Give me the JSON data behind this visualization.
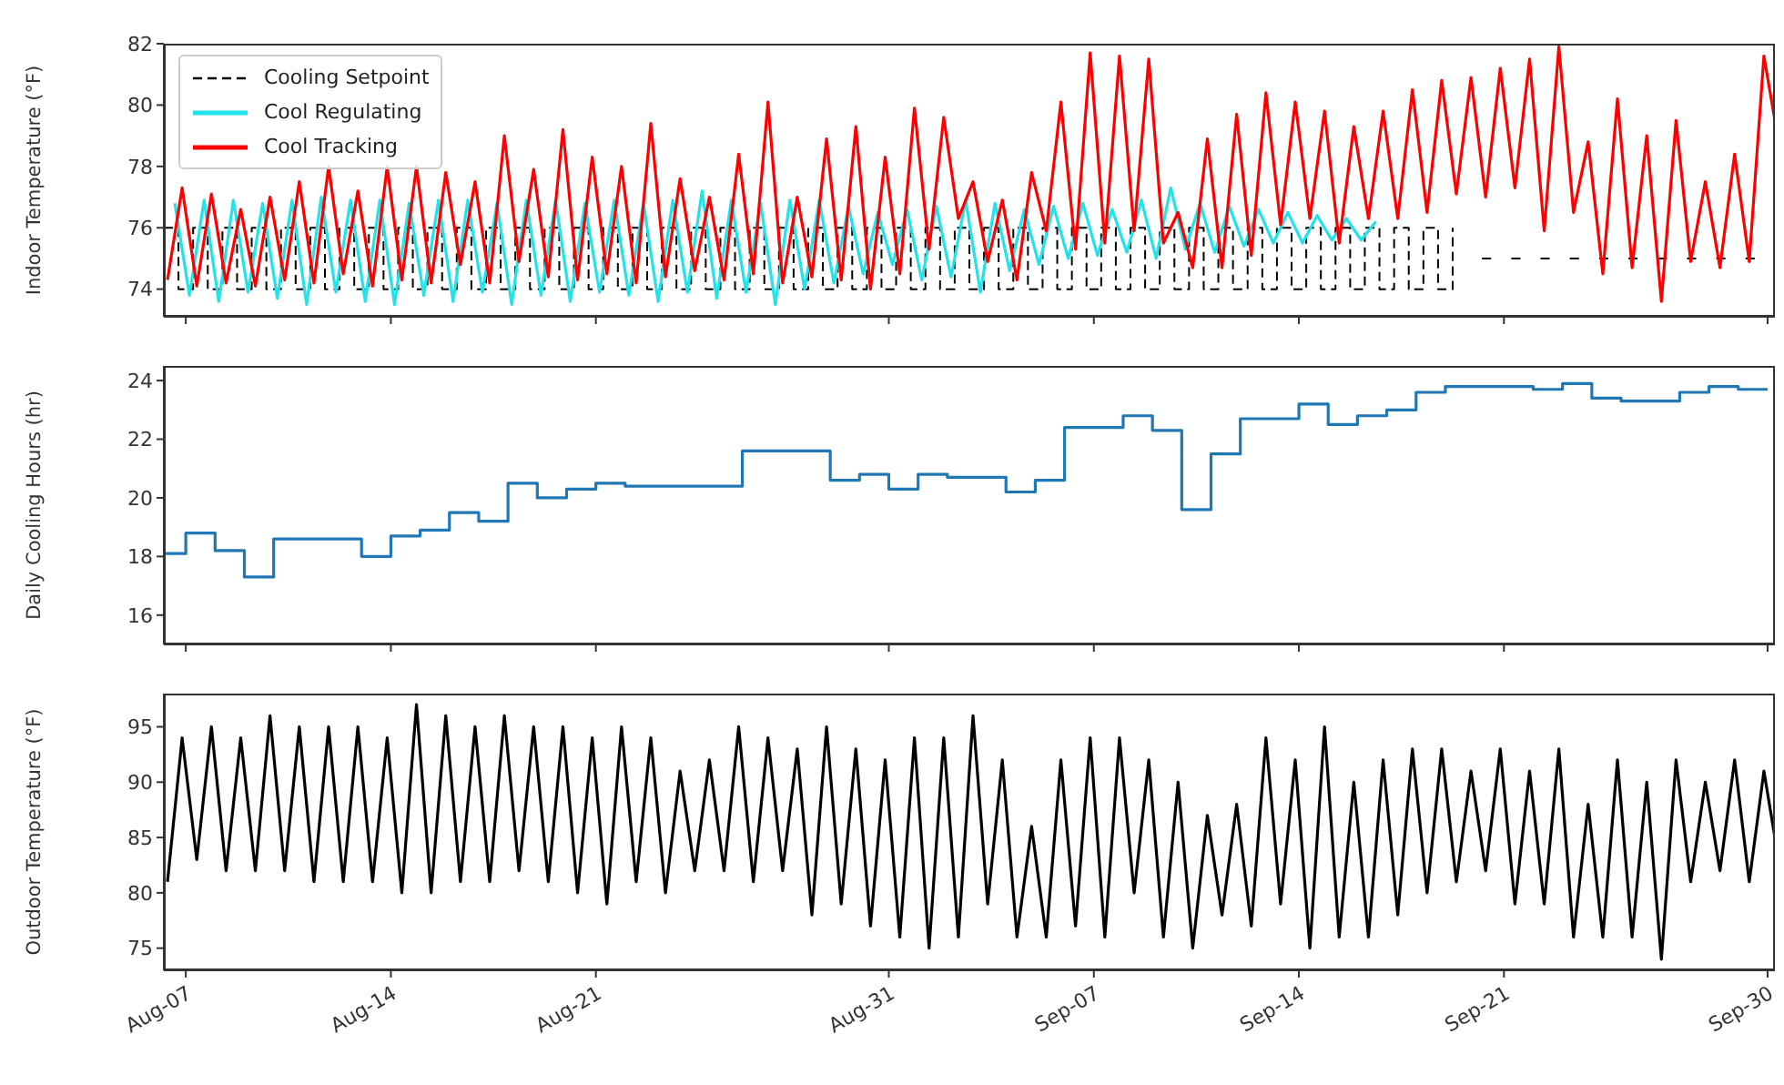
{
  "chart_data": [
    {
      "type": "line",
      "ylabel": "Indoor Temperature (°F)",
      "legend": "top left",
      "tick_labels": "y",
      "xlim": [
        "--08-06T06:00",
        "--09-30T06:00"
      ],
      "xticks": [
        {
          "value": "--08-07",
          "label": "Aug-07"
        },
        {
          "value": "--08-14",
          "label": "Aug-14"
        },
        {
          "value": "--08-21",
          "label": "Aug-21"
        },
        {
          "value": "--08-31",
          "label": "Aug-31"
        },
        {
          "value": "--09-07",
          "label": "Sep-07"
        },
        {
          "value": "--09-14",
          "label": "Sep-14"
        },
        {
          "value": "--09-21",
          "label": "Sep-21"
        },
        {
          "value": "--09-30",
          "label": "Sep-30"
        }
      ],
      "ylim": [
        73.1,
        82
      ],
      "yticks": [
        74,
        76,
        78,
        80,
        82
      ],
      "series": [
        {
          "name": "Cooling Setpoint",
          "type": "step",
          "line_style": "dashed",
          "color": "#000000",
          "x": [
            "--08-06T06:00",
            "--08-06T18:00",
            "--08-07T06:00",
            "--08-07T18:00",
            "--08-08T06:00",
            "--08-08T18:00",
            "--08-09T06:00",
            "--08-09T18:00",
            "--08-10T06:00",
            "--08-10T18:00",
            "--08-11T06:00",
            "--08-11T18:00",
            "--08-12T06:00",
            "--08-12T18:00",
            "--08-13T06:00",
            "--08-13T18:00",
            "--08-14T06:00",
            "--08-14T18:00",
            "--08-15T06:00",
            "--08-15T18:00",
            "--08-16T06:00",
            "--08-16T18:00",
            "--08-17T06:00",
            "--08-17T18:00",
            "--08-18T06:00",
            "--08-18T18:00",
            "--08-19T06:00",
            "--08-19T18:00",
            "--08-20T06:00",
            "--08-20T18:00",
            "--08-21T06:00",
            "--08-21T18:00",
            "--08-22T06:00",
            "--08-22T18:00",
            "--08-23T06:00",
            "--08-23T18:00",
            "--08-24T06:00",
            "--08-24T18:00",
            "--08-25T06:00",
            "--08-25T18:00",
            "--08-26T06:00",
            "--08-26T18:00",
            "--08-27T06:00",
            "--08-27T18:00",
            "--08-28T06:00",
            "--08-28T18:00",
            "--08-29T06:00",
            "--08-29T18:00",
            "--08-30T06:00",
            "--08-30T18:00",
            "--08-31T06:00",
            "--08-31T18:00",
            "--09-01T06:00",
            "--09-01T18:00",
            "--09-02T06:00",
            "--09-02T18:00",
            "--09-03T06:00",
            "--09-03T18:00",
            "--09-04T06:00",
            "--09-04T18:00",
            "--09-05T06:00",
            "--09-05T18:00",
            "--09-06T06:00",
            "--09-06T18:00",
            "--09-07T06:00",
            "--09-07T18:00",
            "--09-08T06:00",
            "--09-08T18:00",
            "--09-09T06:00",
            "--09-09T18:00",
            "--09-10T06:00",
            "--09-10T18:00",
            "--09-11T06:00",
            "--09-11T18:00",
            "--09-12T06:00",
            "--09-12T18:00",
            "--09-13T06:00",
            "--09-13T18:00",
            "--09-14T06:00",
            "--09-14T18:00",
            "--09-15T06:00",
            "--09-15T18:00",
            "--09-16T06:00",
            "--09-16T18:00",
            "--09-17T06:00",
            "--09-17T18:00",
            "--09-18T06:00",
            "--09-18T18:00",
            "--09-19T06:00",
            "--09-19T18:00",
            "--09-20T06:00",
            "--09-20T17:00",
            "--09-20T18:00",
            "--09-21T06:00",
            "--09-21T17:00",
            "--09-21T18:00",
            "--09-22T06:00",
            "--09-22T17:00",
            "--09-22T18:00",
            "--09-23T06:00",
            "--09-23T17:00",
            "--09-23T18:00",
            "--09-24T06:00",
            "--09-24T17:00",
            "--09-24T18:00",
            "--09-25T06:00",
            "--09-25T17:00",
            "--09-25T18:00",
            "--09-26T06:00",
            "--09-26T17:00",
            "--09-26T18:00",
            "--09-27T06:00",
            "--09-27T17:00",
            "--09-27T18:00",
            "--09-28T06:00",
            "--09-28T17:00",
            "--09-28T18:00",
            "--09-29T06:00",
            "--09-29T17:00"
          ],
          "values": [
            76,
            74,
            76,
            74,
            76,
            74,
            76,
            74,
            76,
            74,
            76,
            74,
            76,
            74,
            76,
            74,
            76,
            74,
            76,
            74,
            76,
            74,
            76,
            74,
            76,
            74,
            76,
            74,
            76,
            74,
            76,
            74,
            76,
            74,
            76,
            74,
            76,
            74,
            76,
            74,
            76,
            74,
            76,
            74,
            76,
            74,
            76,
            74,
            76,
            74,
            76,
            74,
            76,
            74,
            76,
            74,
            76,
            74,
            76,
            74,
            76,
            74,
            76,
            74,
            76,
            74,
            76,
            74,
            76,
            74,
            76,
            74,
            76,
            74,
            76,
            74,
            76,
            74,
            76,
            74,
            76,
            74,
            76,
            74,
            76,
            74,
            76,
            74,
            76,
            null,
            75,
            75,
            null,
            75,
            75,
            null,
            75,
            75,
            null,
            75,
            75,
            null,
            75,
            75,
            null,
            75,
            75,
            null,
            75,
            75,
            null,
            75,
            75,
            null,
            75,
            75,
            null,
            75,
            75
          ]
        },
        {
          "name": "Cool Regulating",
          "color": "#22e3ea",
          "x": [
            "--08-06T15:00",
            "--08-07T03:00",
            "--08-07T15:00",
            "--08-08T03:00",
            "--08-08T15:00",
            "--08-09T03:00",
            "--08-09T15:00",
            "--08-10T03:00",
            "--08-10T15:00",
            "--08-11T03:00",
            "--08-11T15:00",
            "--08-12T03:00",
            "--08-12T15:00",
            "--08-13T03:00",
            "--08-13T15:00",
            "--08-14T03:00",
            "--08-14T15:00",
            "--08-15T03:00",
            "--08-15T15:00",
            "--08-16T03:00",
            "--08-16T15:00",
            "--08-17T03:00",
            "--08-17T15:00",
            "--08-18T03:00",
            "--08-18T15:00",
            "--08-19T03:00",
            "--08-19T15:00",
            "--08-20T03:00",
            "--08-20T15:00",
            "--08-21T03:00",
            "--08-21T15:00",
            "--08-22T03:00",
            "--08-22T15:00",
            "--08-23T03:00",
            "--08-23T15:00",
            "--08-24T03:00",
            "--08-24T15:00",
            "--08-25T03:00",
            "--08-25T15:00",
            "--08-26T03:00",
            "--08-26T15:00",
            "--08-27T03:00",
            "--08-27T15:00",
            "--08-28T03:00",
            "--08-28T15:00",
            "--08-29T03:00",
            "--08-29T15:00",
            "--08-30T03:00",
            "--08-30T15:00",
            "--08-31T03:00",
            "--08-31T15:00",
            "--09-01T03:00",
            "--09-01T15:00",
            "--09-02T03:00",
            "--09-02T15:00",
            "--09-03T03:00",
            "--09-03T15:00",
            "--09-04T03:00",
            "--09-04T15:00",
            "--09-05T03:00",
            "--09-05T15:00",
            "--09-06T03:00",
            "--09-06T15:00",
            "--09-07T03:00",
            "--09-07T15:00",
            "--09-08T03:00",
            "--09-08T15:00",
            "--09-09T03:00",
            "--09-09T15:00",
            "--09-10T03:00",
            "--09-10T15:00",
            "--09-11T03:00",
            "--09-11T15:00",
            "--09-12T03:00",
            "--09-12T15:00",
            "--09-13T03:00",
            "--09-13T15:00",
            "--09-14T03:00",
            "--09-14T15:00",
            "--09-15T03:00",
            "--09-15T15:00",
            "--09-16T03:00",
            "--09-16T15:00"
          ],
          "values": [
            76.8,
            73.8,
            76.9,
            73.6,
            76.9,
            73.9,
            76.8,
            73.7,
            76.9,
            73.5,
            77.0,
            73.9,
            76.9,
            73.6,
            76.9,
            73.5,
            76.8,
            73.8,
            76.9,
            73.6,
            76.9,
            73.9,
            76.8,
            73.5,
            76.9,
            73.8,
            76.9,
            73.6,
            76.8,
            73.9,
            76.9,
            73.8,
            76.8,
            73.6,
            76.9,
            73.9,
            77.2,
            73.7,
            76.9,
            73.9,
            76.8,
            73.5,
            76.9,
            74.0,
            76.9,
            74.2,
            76.7,
            74.5,
            76.5,
            74.8,
            76.6,
            74.3,
            76.7,
            74.4,
            76.9,
            73.9,
            76.8,
            74.6,
            76.6,
            74.8,
            76.7,
            75.0,
            76.8,
            75.1,
            76.6,
            75.2,
            76.9,
            75.0,
            77.3,
            75.3,
            76.8,
            75.2,
            76.7,
            75.4,
            76.6,
            75.5,
            76.5,
            75.5,
            76.4,
            75.6,
            76.3,
            75.6,
            76.2
          ]
        },
        {
          "name": "Cool Tracking",
          "color": "#ff0000",
          "x": [
            "--08-06T09:00",
            "--08-06T21:00",
            "--08-07T09:00",
            "--08-07T21:00",
            "--08-08T09:00",
            "--08-08T21:00",
            "--08-09T09:00",
            "--08-09T21:00",
            "--08-10T09:00",
            "--08-10T21:00",
            "--08-11T09:00",
            "--08-11T21:00",
            "--08-12T09:00",
            "--08-12T21:00",
            "--08-13T09:00",
            "--08-13T21:00",
            "--08-14T09:00",
            "--08-14T21:00",
            "--08-15T09:00",
            "--08-15T21:00",
            "--08-16T09:00",
            "--08-16T21:00",
            "--08-17T09:00",
            "--08-17T21:00",
            "--08-18T09:00",
            "--08-18T21:00",
            "--08-19T09:00",
            "--08-19T21:00",
            "--08-20T09:00",
            "--08-20T21:00",
            "--08-21T09:00",
            "--08-21T21:00",
            "--08-22T09:00",
            "--08-22T21:00",
            "--08-23T09:00",
            "--08-23T21:00",
            "--08-24T09:00",
            "--08-24T21:00",
            "--08-25T09:00",
            "--08-25T21:00",
            "--08-26T09:00",
            "--08-26T21:00",
            "--08-27T09:00",
            "--08-27T21:00",
            "--08-28T09:00",
            "--08-28T21:00",
            "--08-29T09:00",
            "--08-29T21:00",
            "--08-30T09:00",
            "--08-30T21:00",
            "--08-31T09:00",
            "--08-31T21:00",
            "--09-01T09:00",
            "--09-01T21:00",
            "--09-02T09:00",
            "--09-02T21:00",
            "--09-03T09:00",
            "--09-03T21:00",
            "--09-04T09:00",
            "--09-04T21:00",
            "--09-05T09:00",
            "--09-05T21:00",
            "--09-06T09:00",
            "--09-06T21:00",
            "--09-07T09:00",
            "--09-07T21:00",
            "--09-08T09:00",
            "--09-08T21:00",
            "--09-09T09:00",
            "--09-09T21:00",
            "--09-10T09:00",
            "--09-10T21:00",
            "--09-11T09:00",
            "--09-11T21:00",
            "--09-12T09:00",
            "--09-12T21:00",
            "--09-13T09:00",
            "--09-13T21:00",
            "--09-14T09:00",
            "--09-14T21:00",
            "--09-15T09:00",
            "--09-15T21:00",
            "--09-16T09:00",
            "--09-16T21:00",
            "--09-17T09:00",
            "--09-17T21:00",
            "--09-18T09:00",
            "--09-18T21:00",
            "--09-19T09:00",
            "--09-19T21:00",
            "--09-20T09:00",
            "--09-20T21:00",
            "--09-21T09:00",
            "--09-21T21:00",
            "--09-22T09:00",
            "--09-22T21:00",
            "--09-23T09:00",
            "--09-23T21:00",
            "--09-24T09:00",
            "--09-24T21:00",
            "--09-25T09:00",
            "--09-25T21:00",
            "--09-26T09:00",
            "--09-26T21:00",
            "--09-27T09:00",
            "--09-27T21:00",
            "--09-28T09:00",
            "--09-28T21:00",
            "--09-29T09:00",
            "--09-29T21:00",
            "--09-30T06:00"
          ],
          "values": [
            74.3,
            77.3,
            74.1,
            77.1,
            74.2,
            76.6,
            74.1,
            77.0,
            74.3,
            77.5,
            74.2,
            78.0,
            74.5,
            77.2,
            74.1,
            78.0,
            74.3,
            78.0,
            74.2,
            77.8,
            74.8,
            77.5,
            74.2,
            79.0,
            74.9,
            77.9,
            74.4,
            79.2,
            74.3,
            78.3,
            74.5,
            78.0,
            74.2,
            79.4,
            74.4,
            77.6,
            74.6,
            77.0,
            74.3,
            78.4,
            74.5,
            80.1,
            74.2,
            77.0,
            74.4,
            78.9,
            74.3,
            79.3,
            74.0,
            78.3,
            74.5,
            79.9,
            75.3,
            79.6,
            76.3,
            77.5,
            74.9,
            76.9,
            74.3,
            77.8,
            75.9,
            80.1,
            75.3,
            81.7,
            75.5,
            81.6,
            75.9,
            81.5,
            75.5,
            76.5,
            74.7,
            78.9,
            74.7,
            79.7,
            75.1,
            80.4,
            76.1,
            80.1,
            76.3,
            79.8,
            75.5,
            79.3,
            76.3,
            79.8,
            76.3,
            80.5,
            76.5,
            80.8,
            77.1,
            80.9,
            77.0,
            81.2,
            77.3,
            81.5,
            75.9,
            81.9,
            76.5,
            78.8,
            74.5,
            80.2,
            74.7,
            79.0,
            73.6,
            79.5,
            74.9,
            77.5,
            74.7,
            78.4,
            74.9,
            81.6,
            79.5
          ]
        }
      ]
    },
    {
      "type": "step",
      "ylabel": "Daily Cooling Hours (hr)",
      "tick_labels": "y",
      "xlim": [
        "--08-06T06:00",
        "--09-30T06:00"
      ],
      "xticks": [
        {
          "value": "--08-07",
          "label": "Aug-07"
        },
        {
          "value": "--08-14",
          "label": "Aug-14"
        },
        {
          "value": "--08-21",
          "label": "Aug-21"
        },
        {
          "value": "--08-31",
          "label": "Aug-31"
        },
        {
          "value": "--09-07",
          "label": "Sep-07"
        },
        {
          "value": "--09-14",
          "label": "Sep-14"
        },
        {
          "value": "--09-21",
          "label": "Sep-21"
        },
        {
          "value": "--09-30",
          "label": "Sep-30"
        }
      ],
      "ylim": [
        15,
        24.5
      ],
      "yticks": [
        16,
        18,
        20,
        22,
        24
      ],
      "series": [
        {
          "color": "#1f77b4",
          "x": [
            "--08-06T06:00",
            "--08-07",
            "--08-08",
            "--08-09",
            "--08-10",
            "--08-11",
            "--08-12",
            "--08-13",
            "--08-14",
            "--08-15",
            "--08-16",
            "--08-17",
            "--08-18",
            "--08-19",
            "--08-20",
            "--08-21",
            "--08-22",
            "--08-23",
            "--08-24",
            "--08-25",
            "--08-26",
            "--08-27",
            "--08-28",
            "--08-29",
            "--08-30",
            "--08-31",
            "--09-01",
            "--09-02",
            "--09-03",
            "--09-04",
            "--09-05",
            "--09-06",
            "--09-07",
            "--09-08",
            "--09-09",
            "--09-10",
            "--09-11",
            "--09-12",
            "--09-13",
            "--09-14",
            "--09-15",
            "--09-16",
            "--09-17",
            "--09-18",
            "--09-19",
            "--09-20",
            "--09-21",
            "--09-22",
            "--09-23",
            "--09-24",
            "--09-25",
            "--09-26",
            "--09-27",
            "--09-28",
            "--09-29",
            "--09-30"
          ],
          "values": [
            18.1,
            18.8,
            18.2,
            17.3,
            18.6,
            18.6,
            18.6,
            18.0,
            18.7,
            18.9,
            19.5,
            19.2,
            20.5,
            20.0,
            20.3,
            20.5,
            20.4,
            20.4,
            20.4,
            20.4,
            21.6,
            21.6,
            21.6,
            20.6,
            20.8,
            20.3,
            20.8,
            20.7,
            20.7,
            20.2,
            20.6,
            22.4,
            22.4,
            22.8,
            22.3,
            19.6,
            21.5,
            22.7,
            22.7,
            23.2,
            22.5,
            22.8,
            23.0,
            23.6,
            23.8,
            23.8,
            23.8,
            23.7,
            23.9,
            23.4,
            23.3,
            23.3,
            23.6,
            23.8,
            23.7,
            23.7
          ]
        }
      ]
    },
    {
      "type": "line",
      "ylabel": "Outdoor Temperature (°F)",
      "xlim": [
        "--08-06T06:00",
        "--09-30T06:00"
      ],
      "xticks": [
        {
          "value": "--08-07",
          "label": "Aug-07"
        },
        {
          "value": "--08-14",
          "label": "Aug-14"
        },
        {
          "value": "--08-21",
          "label": "Aug-21"
        },
        {
          "value": "--08-31",
          "label": "Aug-31"
        },
        {
          "value": "--09-07",
          "label": "Sep-07"
        },
        {
          "value": "--09-14",
          "label": "Sep-14"
        },
        {
          "value": "--09-21",
          "label": "Sep-21"
        },
        {
          "value": "--09-30",
          "label": "Sep-30"
        }
      ],
      "ylim": [
        73,
        98
      ],
      "yticks": [
        75,
        80,
        85,
        90,
        95
      ],
      "series": [
        {
          "color": "#000000",
          "x": [
            "--08-06T09:00",
            "--08-06T21:00",
            "--08-07T09:00",
            "--08-07T21:00",
            "--08-08T09:00",
            "--08-08T21:00",
            "--08-09T09:00",
            "--08-09T21:00",
            "--08-10T09:00",
            "--08-10T21:00",
            "--08-11T09:00",
            "--08-11T21:00",
            "--08-12T09:00",
            "--08-12T21:00",
            "--08-13T09:00",
            "--08-13T21:00",
            "--08-14T09:00",
            "--08-14T21:00",
            "--08-15T09:00",
            "--08-15T21:00",
            "--08-16T09:00",
            "--08-16T21:00",
            "--08-17T09:00",
            "--08-17T21:00",
            "--08-18T09:00",
            "--08-18T21:00",
            "--08-19T09:00",
            "--08-19T21:00",
            "--08-20T09:00",
            "--08-20T21:00",
            "--08-21T09:00",
            "--08-21T21:00",
            "--08-22T09:00",
            "--08-22T21:00",
            "--08-23T09:00",
            "--08-23T21:00",
            "--08-24T09:00",
            "--08-24T21:00",
            "--08-25T09:00",
            "--08-25T21:00",
            "--08-26T09:00",
            "--08-26T21:00",
            "--08-27T09:00",
            "--08-27T21:00",
            "--08-28T09:00",
            "--08-28T21:00",
            "--08-29T09:00",
            "--08-29T21:00",
            "--08-30T09:00",
            "--08-30T21:00",
            "--08-31T09:00",
            "--08-31T21:00",
            "--09-01T09:00",
            "--09-01T21:00",
            "--09-02T09:00",
            "--09-02T21:00",
            "--09-03T09:00",
            "--09-03T21:00",
            "--09-04T09:00",
            "--09-04T21:00",
            "--09-05T09:00",
            "--09-05T21:00",
            "--09-06T09:00",
            "--09-06T21:00",
            "--09-07T09:00",
            "--09-07T21:00",
            "--09-08T09:00",
            "--09-08T21:00",
            "--09-09T09:00",
            "--09-09T21:00",
            "--09-10T09:00",
            "--09-10T21:00",
            "--09-11T09:00",
            "--09-11T21:00",
            "--09-12T09:00",
            "--09-12T21:00",
            "--09-13T09:00",
            "--09-13T21:00",
            "--09-14T09:00",
            "--09-14T21:00",
            "--09-15T09:00",
            "--09-15T21:00",
            "--09-16T09:00",
            "--09-16T21:00",
            "--09-17T09:00",
            "--09-17T21:00",
            "--09-18T09:00",
            "--09-18T21:00",
            "--09-19T09:00",
            "--09-19T21:00",
            "--09-20T09:00",
            "--09-20T21:00",
            "--09-21T09:00",
            "--09-21T21:00",
            "--09-22T09:00",
            "--09-22T21:00",
            "--09-23T09:00",
            "--09-23T21:00",
            "--09-24T09:00",
            "--09-24T21:00",
            "--09-25T09:00",
            "--09-25T21:00",
            "--09-26T09:00",
            "--09-26T21:00",
            "--09-27T09:00",
            "--09-27T21:00",
            "--09-28T09:00",
            "--09-28T21:00",
            "--09-29T09:00",
            "--09-29T21:00",
            "--09-30T06:00"
          ],
          "values": [
            81,
            94,
            83,
            95,
            82,
            94,
            82,
            96,
            82,
            95,
            81,
            95,
            81,
            95,
            81,
            94,
            80,
            97,
            80,
            96,
            81,
            95,
            81,
            96,
            82,
            95,
            81,
            95,
            80,
            94,
            79,
            95,
            81,
            94,
            80,
            91,
            82,
            92,
            82,
            95,
            81,
            94,
            82,
            93,
            78,
            95,
            79,
            93,
            77,
            92,
            76,
            94,
            75,
            94,
            76,
            96,
            79,
            92,
            76,
            86,
            76,
            92,
            77,
            94,
            76,
            94,
            80,
            92,
            76,
            90,
            75,
            87,
            78,
            88,
            77,
            94,
            79,
            92,
            75,
            95,
            76,
            90,
            76,
            92,
            78,
            93,
            80,
            93,
            81,
            91,
            82,
            93,
            79,
            91,
            79,
            93,
            76,
            88,
            76,
            92,
            76,
            90,
            74,
            92,
            81,
            90,
            82,
            92,
            81,
            91,
            85
          ]
        }
      ]
    }
  ]
}
